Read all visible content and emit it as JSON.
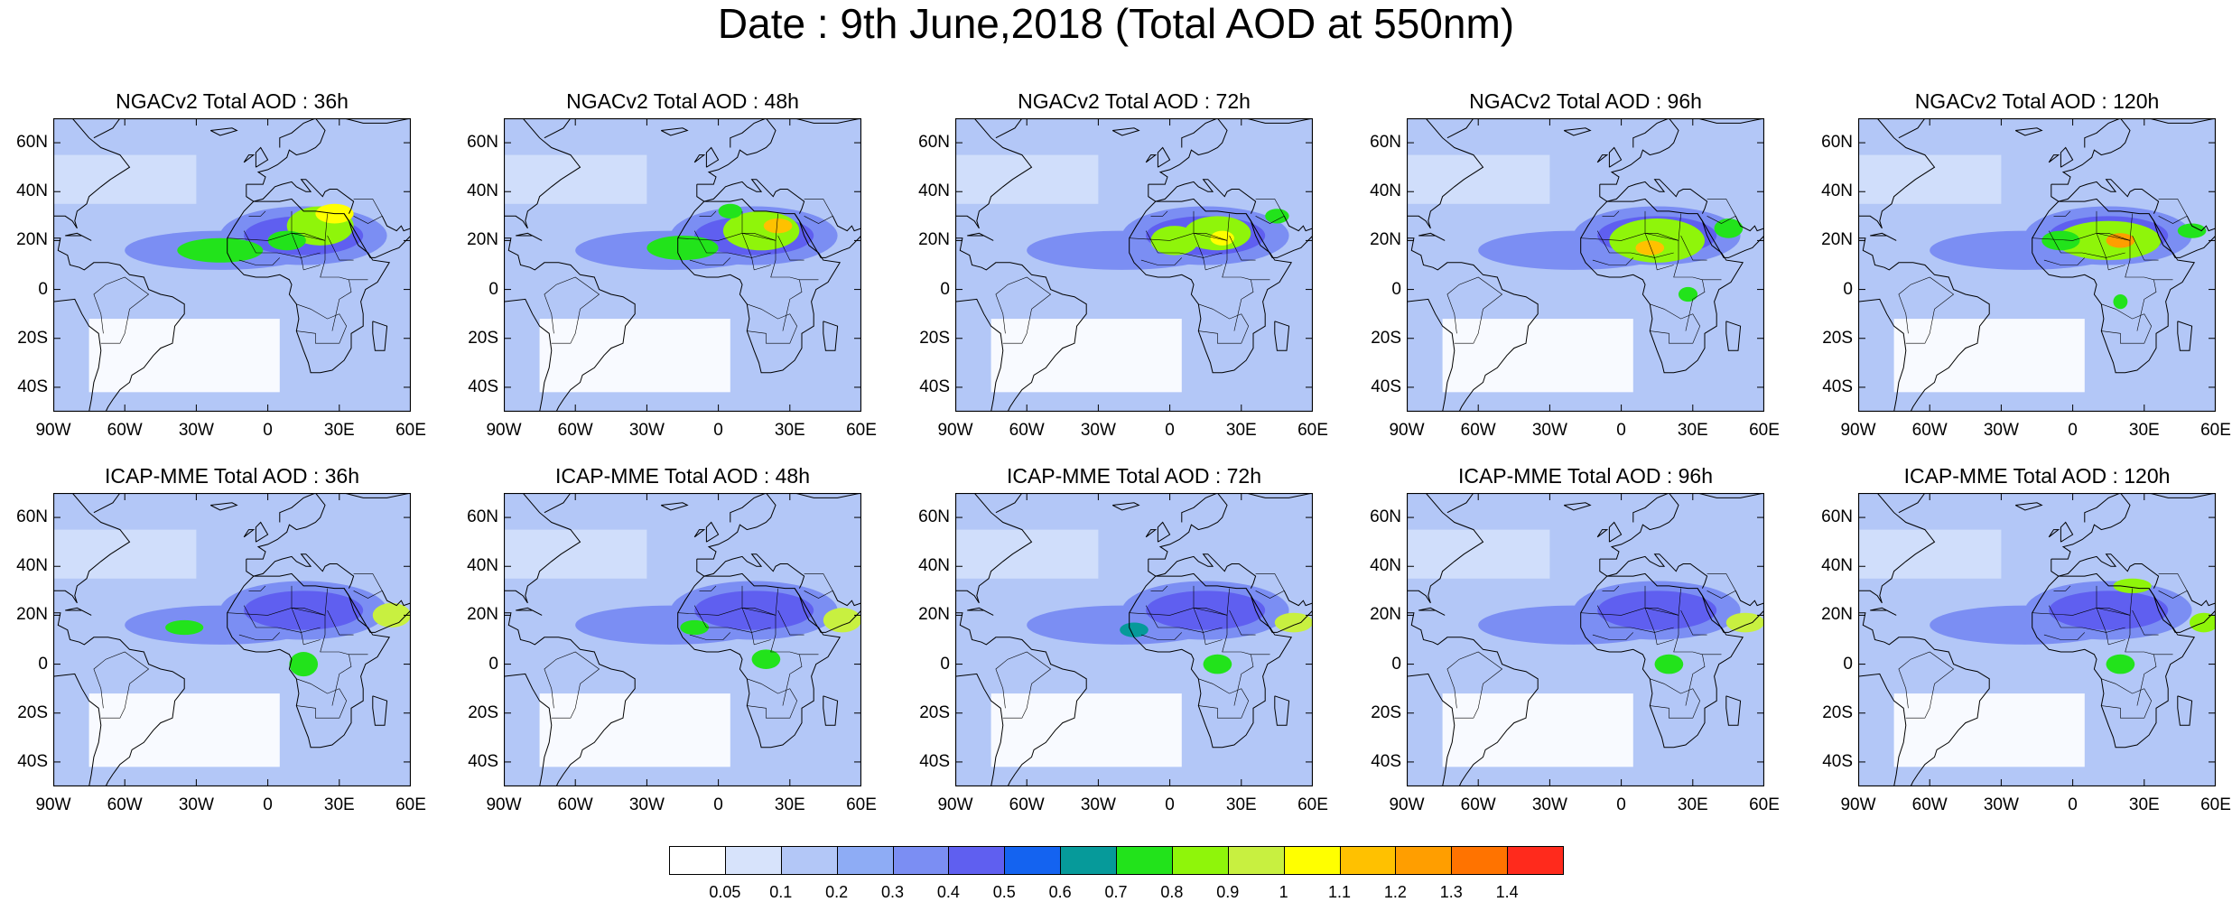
{
  "title": "Date : 9th June,2018 (Total AOD at 550nm)",
  "lat_ticks": [
    "60N",
    "40N",
    "20N",
    "0",
    "20S",
    "40S"
  ],
  "lon_ticks": [
    "90W",
    "60W",
    "30W",
    "0",
    "30E",
    "60E"
  ],
  "map_extent": {
    "lon_min": -90,
    "lon_max": 60,
    "lat_min": -50,
    "lat_max": 70
  },
  "panels": [
    {
      "title": "NGACv2 Total AOD : 36h",
      "model": "NGACv2",
      "lead": "36h",
      "plumes": [
        {
          "lon": -20,
          "lat": 16,
          "rx": 18,
          "ry": 5,
          "level": 8
        },
        {
          "lon": 22,
          "lat": 26,
          "rx": 14,
          "ry": 8,
          "level": 9
        },
        {
          "lon": 28,
          "lat": 31,
          "rx": 8,
          "ry": 4,
          "level": 11
        },
        {
          "lon": 8,
          "lat": 20,
          "rx": 8,
          "ry": 4,
          "level": 8
        }
      ]
    },
    {
      "title": "NGACv2 Total AOD : 48h",
      "model": "NGACv2",
      "lead": "48h",
      "plumes": [
        {
          "lon": -15,
          "lat": 17,
          "rx": 15,
          "ry": 5,
          "level": 8
        },
        {
          "lon": 18,
          "lat": 24,
          "rx": 16,
          "ry": 8,
          "level": 9
        },
        {
          "lon": 25,
          "lat": 26,
          "rx": 6,
          "ry": 3,
          "level": 12
        },
        {
          "lon": 5,
          "lat": 32,
          "rx": 5,
          "ry": 3,
          "level": 8
        }
      ]
    },
    {
      "title": "NGACv2 Total AOD : 72h",
      "model": "NGACv2",
      "lead": "72h",
      "plumes": [
        {
          "lon": 2,
          "lat": 20,
          "rx": 10,
          "ry": 6,
          "level": 9
        },
        {
          "lon": 20,
          "lat": 23,
          "rx": 14,
          "ry": 7,
          "level": 9
        },
        {
          "lon": 22,
          "lat": 21,
          "rx": 5,
          "ry": 3,
          "level": 11
        },
        {
          "lon": 45,
          "lat": 30,
          "rx": 5,
          "ry": 3,
          "level": 8
        }
      ]
    },
    {
      "title": "NGACv2 Total AOD : 96h",
      "model": "NGACv2",
      "lead": "96h",
      "plumes": [
        {
          "lon": 15,
          "lat": 20,
          "rx": 20,
          "ry": 9,
          "level": 9
        },
        {
          "lon": 12,
          "lat": 17,
          "rx": 6,
          "ry": 3,
          "level": 12
        },
        {
          "lon": 45,
          "lat": 25,
          "rx": 6,
          "ry": 4,
          "level": 8
        },
        {
          "lon": 28,
          "lat": -2,
          "rx": 4,
          "ry": 3,
          "level": 8
        }
      ]
    },
    {
      "title": "NGACv2 Total AOD : 120h",
      "model": "NGACv2",
      "lead": "120h",
      "plumes": [
        {
          "lon": 15,
          "lat": 20,
          "rx": 22,
          "ry": 8,
          "level": 9
        },
        {
          "lon": 20,
          "lat": 20,
          "rx": 6,
          "ry": 3,
          "level": 13
        },
        {
          "lon": -5,
          "lat": 20,
          "rx": 8,
          "ry": 4,
          "level": 8
        },
        {
          "lon": 50,
          "lat": 24,
          "rx": 6,
          "ry": 3,
          "level": 8
        },
        {
          "lon": 20,
          "lat": -5,
          "rx": 3,
          "ry": 3,
          "level": 8
        }
      ]
    },
    {
      "title": "ICAP-MME Total AOD : 36h",
      "model": "ICAP-MME",
      "lead": "36h",
      "plumes": [
        {
          "lon": -35,
          "lat": 15,
          "rx": 8,
          "ry": 3,
          "level": 8
        },
        {
          "lon": 15,
          "lat": 0,
          "rx": 6,
          "ry": 5,
          "level": 8
        },
        {
          "lon": 52,
          "lat": 20,
          "rx": 8,
          "ry": 5,
          "level": 10
        }
      ]
    },
    {
      "title": "ICAP-MME Total AOD : 48h",
      "model": "ICAP-MME",
      "lead": "48h",
      "plumes": [
        {
          "lon": -10,
          "lat": 15,
          "rx": 6,
          "ry": 3,
          "level": 8
        },
        {
          "lon": 20,
          "lat": 2,
          "rx": 6,
          "ry": 4,
          "level": 8
        },
        {
          "lon": 52,
          "lat": 18,
          "rx": 8,
          "ry": 5,
          "level": 10
        }
      ]
    },
    {
      "title": "ICAP-MME Total AOD : 72h",
      "model": "ICAP-MME",
      "lead": "72h",
      "plumes": [
        {
          "lon": -15,
          "lat": 14,
          "rx": 6,
          "ry": 3,
          "level": 7
        },
        {
          "lon": 20,
          "lat": 0,
          "rx": 6,
          "ry": 4,
          "level": 8
        },
        {
          "lon": 52,
          "lat": 17,
          "rx": 8,
          "ry": 4,
          "level": 10
        }
      ]
    },
    {
      "title": "ICAP-MME Total AOD : 96h",
      "model": "ICAP-MME",
      "lead": "96h",
      "plumes": [
        {
          "lon": 20,
          "lat": 0,
          "rx": 6,
          "ry": 4,
          "level": 8
        },
        {
          "lon": 52,
          "lat": 17,
          "rx": 8,
          "ry": 4,
          "level": 10
        }
      ]
    },
    {
      "title": "ICAP-MME Total AOD : 120h",
      "model": "ICAP-MME",
      "lead": "120h",
      "plumes": [
        {
          "lon": 25,
          "lat": 32,
          "rx": 8,
          "ry": 3,
          "level": 9
        },
        {
          "lon": 20,
          "lat": 0,
          "rx": 6,
          "ry": 4,
          "level": 8
        },
        {
          "lon": 55,
          "lat": 17,
          "rx": 6,
          "ry": 4,
          "level": 9
        }
      ]
    }
  ],
  "colorbar": {
    "labels": [
      "0.05",
      "0.1",
      "0.2",
      "0.3",
      "0.4",
      "0.5",
      "0.6",
      "0.7",
      "0.8",
      "0.9",
      "1",
      "1.1",
      "1.2",
      "1.3",
      "1.4"
    ],
    "colors": [
      "#ffffff",
      "#d7e3fb",
      "#b3c7f7",
      "#8eacf5",
      "#7b8ef3",
      "#5f5ff0",
      "#1463f0",
      "#069a9a",
      "#22e31b",
      "#8ff50a",
      "#c8f040",
      "#ffff00",
      "#ffc100",
      "#ff9e00",
      "#ff7300",
      "#ff2a1c"
    ]
  }
}
